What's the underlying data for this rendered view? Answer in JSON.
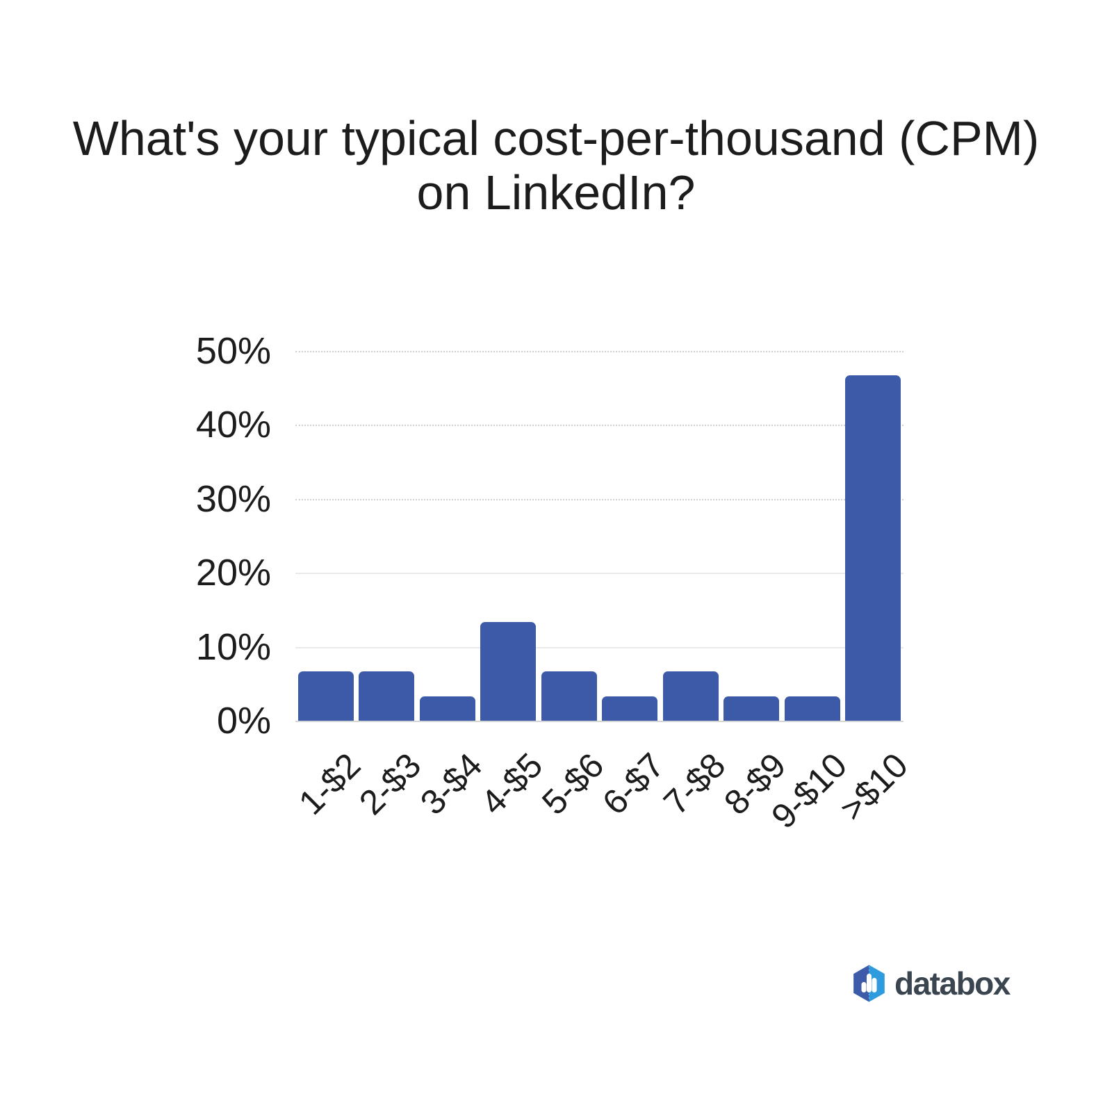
{
  "title": {
    "line1": "What's your typical cost-per-thousand (CPM)",
    "line2": "on LinkedIn?"
  },
  "chart_data": {
    "type": "bar",
    "title": "What's your typical cost-per-thousand (CPM) on LinkedIn?",
    "categories": [
      "1-$2",
      "2-$3",
      "3-$4",
      "4-$5",
      "5-$6",
      "6-$7",
      "7-$8",
      "8-$9",
      "9-$10",
      ">$10"
    ],
    "values": [
      6.7,
      6.7,
      3.3,
      13.3,
      6.7,
      3.3,
      6.7,
      3.3,
      3.3,
      46.7
    ],
    "unit": "%",
    "xlabel": "",
    "ylabel": "",
    "ylim": [
      0,
      50
    ],
    "y_ticks": [
      "0%",
      "10%",
      "20%",
      "30%",
      "40%",
      "50%"
    ],
    "grid": "horizontal",
    "legend": "none",
    "bar_color": "#3d5aa8"
  },
  "branding": {
    "logo_text": "databox",
    "logo_icon": "databox-hexagon-bar-chart-icon",
    "colors": {
      "icon_dark_blue": "#3e5ba9",
      "icon_light_blue": "#2e9bdf",
      "wordmark": "#3a4550"
    }
  }
}
